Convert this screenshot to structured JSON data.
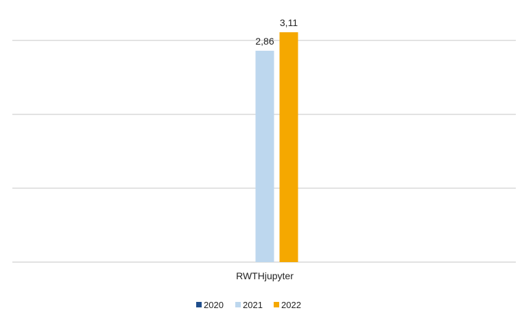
{
  "chart_data": {
    "type": "bar",
    "categories": [
      "RWTHjupyter"
    ],
    "series": [
      {
        "name": "2020",
        "values": [
          null
        ],
        "color": "#1f4e8c"
      },
      {
        "name": "2021",
        "values": [
          2.86
        ],
        "color": "#bdd7ee"
      },
      {
        "name": "2022",
        "values": [
          3.11
        ],
        "color": "#f5a800"
      }
    ],
    "data_labels": [
      "",
      "2,86",
      "3,11"
    ],
    "ylim": [
      0,
      3.5
    ],
    "gridlines": [
      0,
      1,
      2,
      3
    ],
    "grid": true,
    "axis_color": "#d9d9d9",
    "legend_position": "bottom"
  }
}
